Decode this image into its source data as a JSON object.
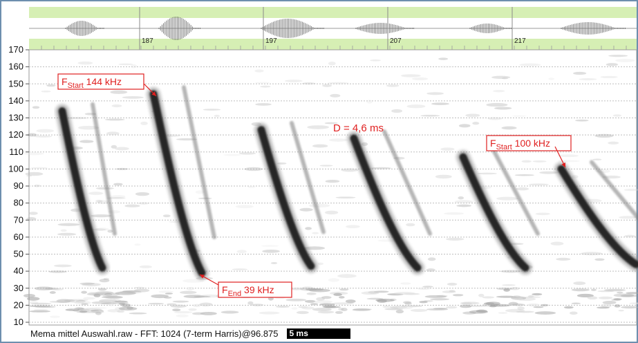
{
  "overview": {
    "time_labels": [
      "187",
      "197",
      "207",
      "217"
    ]
  },
  "chart_data": {
    "type": "heatmap",
    "title": "",
    "xlabel": "",
    "ylabel": "",
    "y_ticks": [
      170,
      160,
      150,
      140,
      130,
      120,
      110,
      100,
      90,
      80,
      70,
      60,
      50,
      40,
      30,
      20,
      10
    ],
    "ylim": [
      5,
      172
    ],
    "grid": true,
    "calls": [
      {
        "start_khz": 134,
        "end_khz": 42
      },
      {
        "start_khz": 144,
        "end_khz": 39
      },
      {
        "start_khz": 123,
        "end_khz": 43
      },
      {
        "start_khz": 118,
        "end_khz": 42
      },
      {
        "start_khz": 107,
        "end_khz": 42
      },
      {
        "start_khz": 100,
        "end_khz": 44
      }
    ],
    "annotations": [
      {
        "label": "F",
        "sub": "Start",
        "value": "144 kHz"
      },
      {
        "label": "F",
        "sub": "End",
        "value": "39 kHz"
      },
      {
        "label": "D = 4,6 ms"
      },
      {
        "label": "F",
        "sub": "Start",
        "value": "100 kHz"
      }
    ]
  },
  "status": {
    "caption": "Mema mittel Auswahl.raw - FFT: 1024 (7-term Harris)@96.875",
    "scale_label": "5 ms"
  },
  "colors": {
    "frame": "#6d8fae",
    "overview_bg": "#d6efb4",
    "annotation": "#e02020",
    "call": "#262626"
  }
}
